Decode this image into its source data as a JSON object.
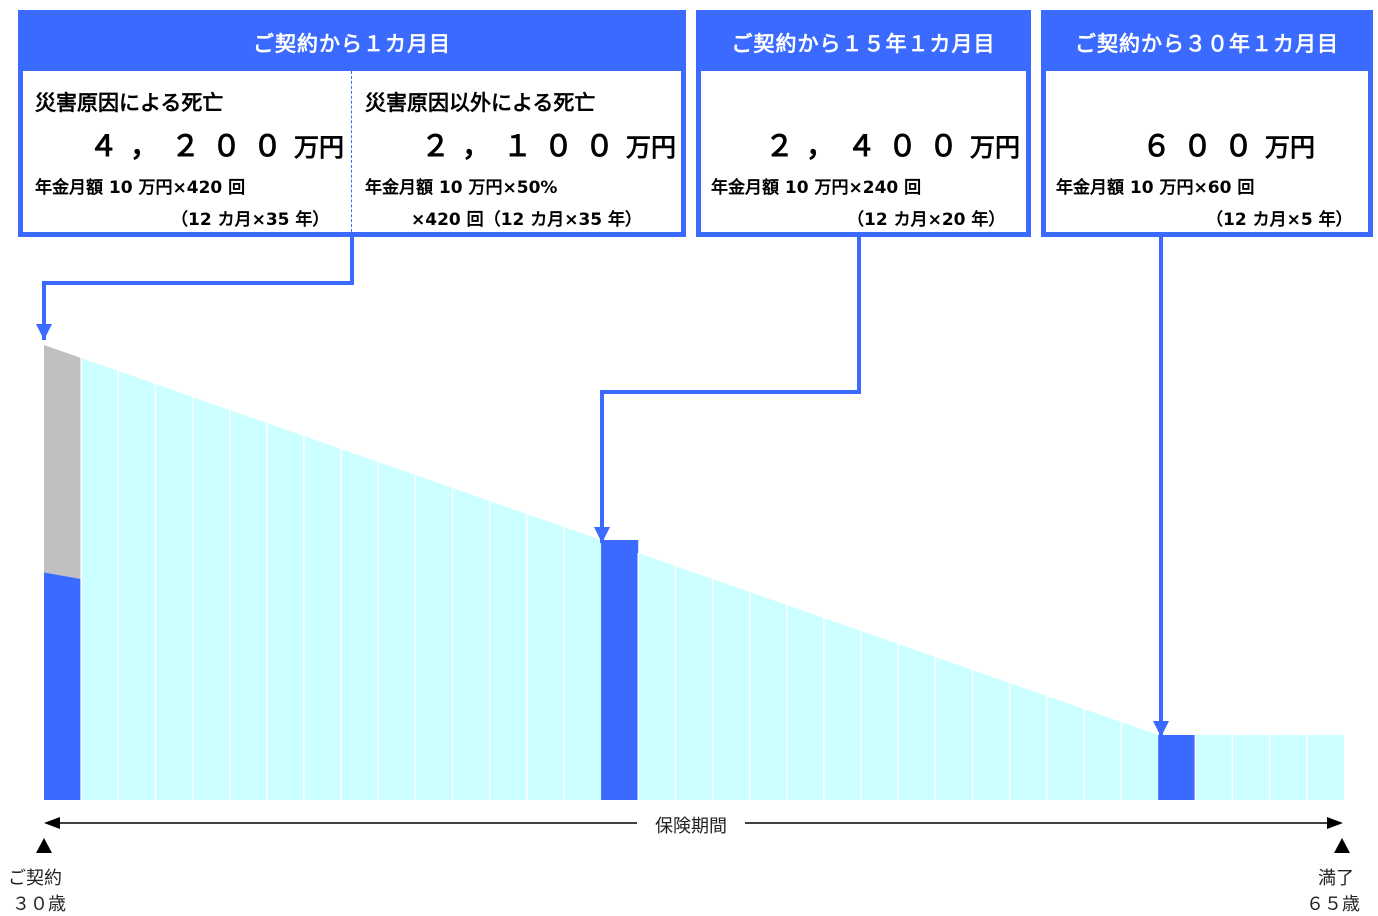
{
  "boxes": {
    "month1": {
      "header": "ご契約から１カ月目",
      "left": {
        "title": "災害原因による死亡",
        "amount": "４，２００",
        "unit": "万円",
        "detail1": "年金月額 10 万円×420 回",
        "detail2": "（12 カ月×35 年）"
      },
      "right": {
        "title": "災害原因以外による死亡",
        "amount": "２，１００",
        "unit": "万円",
        "detail1": "年金月額 10 万円×50%",
        "detail2": "×420 回（12 カ月×35 年）"
      }
    },
    "year15": {
      "header": "ご契約から１５年１カ月目",
      "amount": "２，４００",
      "unit": "万円",
      "detail1": "年金月額 10 万円×240 回",
      "detail2": "（12 カ月×20 年）"
    },
    "year30": {
      "header": "ご契約から３０年１カ月目",
      "amount": "６００",
      "unit": "万円",
      "detail1": "年金月額 10 万円×60 回",
      "detail2": "（12 カ月×5 年）"
    }
  },
  "axis": {
    "label": "保険期間",
    "start_label": "ご契約",
    "start_age": "３０歳",
    "end_label": "満了",
    "end_age": "６５歳"
  },
  "chart_data": {
    "type": "area",
    "x_label": "保険期間",
    "x_start": "ご契約 ３０歳",
    "x_end": "満了 ６５歳",
    "total_years": 35,
    "payout_period_years": [
      35,
      34,
      33,
      32,
      31,
      30,
      29,
      28,
      27,
      26,
      25,
      24,
      23,
      22,
      21,
      20,
      19,
      18,
      17,
      16,
      15,
      14,
      13,
      12,
      11,
      10,
      9,
      8,
      7,
      6,
      5,
      5,
      5,
      5,
      5
    ],
    "highlighted_years": [
      1,
      16,
      31
    ],
    "first_year_disaster_payout_man_yen": 4200,
    "first_year_non_disaster_payout_man_yen": 2100,
    "year16_payout_man_yen": 2400,
    "year31_payout_man_yen": 600
  },
  "colors": {
    "accent_blue": "#3a6aff",
    "light_cyan": "#ccffff",
    "gray": "#c0c0c0",
    "axis": "#000000"
  }
}
